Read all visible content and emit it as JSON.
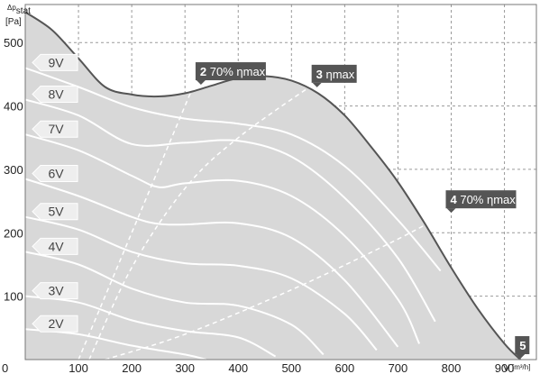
{
  "chart_data": {
    "type": "line",
    "title": "",
    "xlabel": "V",
    "xunit": "[m³/h]",
    "ylabel": "Δp",
    "ylabel_sub": "stat",
    "yunit": "[Pa]",
    "xlim": [
      0,
      960
    ],
    "ylim": [
      0,
      560
    ],
    "x_ticks": [
      0,
      100,
      200,
      300,
      400,
      500,
      600,
      700,
      800,
      900
    ],
    "y_ticks": [
      100,
      200,
      300,
      400,
      500
    ],
    "grid": true,
    "colors": {
      "envelope_fill": "#d8d8d8",
      "envelope_line": "#555555",
      "voltage_curves": "#ffffff",
      "marker_bg": "#555555",
      "voltage_label_bg": "#eeeeee",
      "grid": "#9a9a9a"
    },
    "envelope": {
      "x": [
        0,
        50,
        100,
        150,
        200,
        250,
        300,
        350,
        400,
        450,
        500,
        550,
        600,
        650,
        700,
        750,
        800,
        850,
        900,
        930
      ],
      "y": [
        548,
        520,
        475,
        430,
        418,
        415,
        420,
        432,
        444,
        447,
        440,
        420,
        385,
        335,
        280,
        215,
        145,
        80,
        25,
        0
      ]
    },
    "series": [
      {
        "name": "9V",
        "x": [
          0,
          100,
          200,
          300,
          400,
          500,
          600,
          700,
          780
        ],
        "y": [
          460,
          430,
          398,
          380,
          372,
          355,
          305,
          220,
          140
        ]
      },
      {
        "name": "8V",
        "x": [
          0,
          100,
          200,
          300,
          400,
          500,
          600,
          700,
          770
        ],
        "y": [
          410,
          385,
          340,
          342,
          345,
          320,
          255,
          160,
          60
        ]
      },
      {
        "name": "7V",
        "x": [
          0,
          100,
          200,
          250,
          300,
          400,
          500,
          600,
          700,
          740
        ],
        "y": [
          355,
          330,
          290,
          272,
          278,
          282,
          258,
          195,
          95,
          25
        ]
      },
      {
        "name": "6V",
        "x": [
          0,
          100,
          200,
          250,
          300,
          400,
          500,
          600,
          700
        ],
        "y": [
          285,
          258,
          225,
          214,
          213,
          215,
          192,
          125,
          20
        ]
      },
      {
        "name": "5V",
        "x": [
          0,
          100,
          200,
          300,
          400,
          500,
          600,
          660
        ],
        "y": [
          225,
          205,
          170,
          152,
          148,
          128,
          72,
          15
        ]
      },
      {
        "name": "4V",
        "x": [
          0,
          100,
          200,
          300,
          400,
          500,
          560
        ],
        "y": [
          170,
          150,
          112,
          90,
          85,
          55,
          8
        ]
      },
      {
        "name": "3V",
        "x": [
          0,
          100,
          200,
          300,
          400,
          470
        ],
        "y": [
          100,
          90,
          62,
          45,
          35,
          5
        ]
      },
      {
        "name": "2V",
        "x": [
          0,
          100,
          200,
          300,
          340
        ],
        "y": [
          48,
          40,
          22,
          8,
          0
        ]
      }
    ],
    "efficiency_lines": [
      {
        "x": [
          100,
          200,
          320
        ],
        "y": [
          0,
          200,
          440
        ]
      },
      {
        "x": [
          120,
          200,
          300,
          400,
          560
        ],
        "y": [
          0,
          145,
          270,
          350,
          445
        ]
      },
      {
        "x": [
          150,
          300,
          500,
          700,
          810
        ],
        "y": [
          0,
          40,
          110,
          190,
          240
        ]
      }
    ],
    "markers": [
      {
        "number": "2",
        "text": "70% ηmax",
        "x": 330,
        "y": 432
      },
      {
        "number": "3",
        "text": "ηmax",
        "x": 548,
        "y": 428
      },
      {
        "number": "4",
        "text": "70% ηmax",
        "x": 800,
        "y": 230
      },
      {
        "number": "5",
        "text": "",
        "x": 930,
        "y": 0
      }
    ]
  }
}
